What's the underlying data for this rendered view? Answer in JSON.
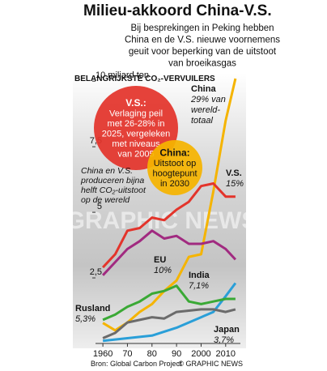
{
  "chart_data": {
    "type": "line",
    "title": "Milieu-akkoord China-V.S.",
    "subtitle": [
      "Bij besprekingen in Peking hebben",
      "China en de V.S. nieuwe voornemens",
      "geuit voor beperking van de uitstoot",
      "van broeikasgas"
    ],
    "section_label": "BELANGRIJKSTE CO₂-VERVUILERS",
    "x": [
      1960,
      1965,
      1970,
      1975,
      1980,
      1985,
      1990,
      1995,
      2000,
      2005,
      2010,
      2014
    ],
    "xlim": [
      1957,
      2016
    ],
    "xticks": [
      1960,
      {
        "value": 1970,
        "label": "70"
      },
      {
        "value": 1980,
        "label": "80"
      },
      {
        "value": 1990,
        "label": "90"
      },
      2000,
      2010
    ],
    "ylim": [
      0,
      10.5
    ],
    "yticks": [
      {
        "value": 2.5,
        "label": "2,5"
      },
      5,
      {
        "value": 7.5,
        "label": "7,5"
      },
      {
        "value": 10,
        "label": "10 miljard ton"
      }
    ],
    "series": [
      {
        "name": "China",
        "share": [
          "29% van",
          "wereld-",
          "totaal"
        ],
        "color": "#f5b400",
        "values": [
          0.78,
          0.5,
          0.8,
          1.2,
          1.5,
          2.0,
          2.4,
          3.3,
          3.4,
          5.8,
          8.5,
          10.1
        ]
      },
      {
        "name": "V.S.",
        "share": [
          "15%"
        ],
        "color": "#e3342b",
        "values": [
          2.9,
          3.4,
          4.3,
          4.4,
          4.8,
          4.7,
          5.1,
          5.4,
          6.0,
          6.1,
          5.6,
          5.6
        ]
      },
      {
        "name": "EU",
        "share": [
          "10%"
        ],
        "color": "#a12a80",
        "values": [
          2.6,
          3.1,
          3.6,
          3.9,
          4.3,
          4.0,
          4.1,
          3.8,
          3.8,
          3.9,
          3.6,
          3.2
        ]
      },
      {
        "name": "India",
        "share": [
          "7,1%"
        ],
        "color": "#2a9fd8",
        "values": [
          0.1,
          0.15,
          0.2,
          0.25,
          0.3,
          0.45,
          0.6,
          0.8,
          1.0,
          1.2,
          1.8,
          2.3
        ]
      },
      {
        "name": "Rusland",
        "share": [
          "5,3%"
        ],
        "color": "#3aa935",
        "values": [
          0.9,
          1.1,
          1.4,
          1.6,
          1.9,
          2.0,
          2.2,
          1.6,
          1.5,
          1.6,
          1.7,
          1.7
        ]
      },
      {
        "name": "Japan",
        "share": [
          "3,7%"
        ],
        "color": "#6b6b6b",
        "values": [
          0.2,
          0.4,
          0.8,
          0.9,
          1.0,
          0.95,
          1.2,
          1.25,
          1.3,
          1.3,
          1.2,
          1.3
        ]
      }
    ],
    "callouts": [
      {
        "title": "V.S.:",
        "text": [
          "Verlaging peil",
          "met 26-28% in",
          "2025, vergeleken",
          "met niveaus",
          "van 2005"
        ],
        "color": "#e3342b"
      },
      {
        "title": "China:",
        "text": [
          "Uitstoot op",
          "hoogtepunt",
          "in 2030"
        ],
        "color": "#f5b400"
      }
    ],
    "note": [
      "China en V.S.",
      "produceren bijna",
      "helft CO₂-uitstoot",
      "op de wereld"
    ],
    "watermark": "GRAPHIC NEWS",
    "source": "Bron: Global Carbon Project",
    "credit": "© GRAPHIC NEWS"
  }
}
